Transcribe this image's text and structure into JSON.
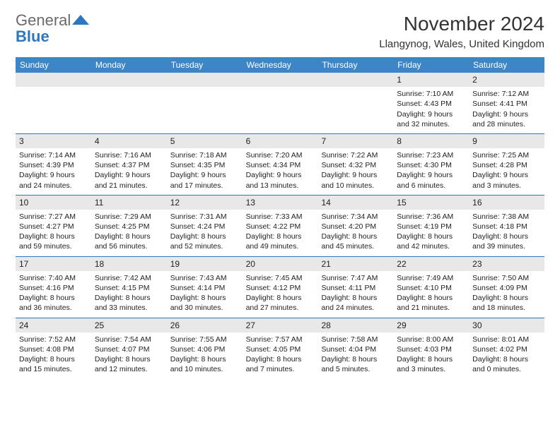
{
  "logo": {
    "line1": "General",
    "line2": "Blue"
  },
  "monthTitle": "November 2024",
  "location": "Llangynog, Wales, United Kingdom",
  "colors": {
    "headerBlue": "#3c86c7",
    "borderBlue": "#2d77c2",
    "grayBand": "#e8e8e8",
    "logoGray": "#6a6a6a"
  },
  "dayNames": [
    "Sunday",
    "Monday",
    "Tuesday",
    "Wednesday",
    "Thursday",
    "Friday",
    "Saturday"
  ],
  "weeks": [
    [
      null,
      null,
      null,
      null,
      null,
      {
        "d": "1",
        "sr": "7:10 AM",
        "ss": "4:43 PM",
        "dl": "9 hours and 32 minutes."
      },
      {
        "d": "2",
        "sr": "7:12 AM",
        "ss": "4:41 PM",
        "dl": "9 hours and 28 minutes."
      }
    ],
    [
      {
        "d": "3",
        "sr": "7:14 AM",
        "ss": "4:39 PM",
        "dl": "9 hours and 24 minutes."
      },
      {
        "d": "4",
        "sr": "7:16 AM",
        "ss": "4:37 PM",
        "dl": "9 hours and 21 minutes."
      },
      {
        "d": "5",
        "sr": "7:18 AM",
        "ss": "4:35 PM",
        "dl": "9 hours and 17 minutes."
      },
      {
        "d": "6",
        "sr": "7:20 AM",
        "ss": "4:34 PM",
        "dl": "9 hours and 13 minutes."
      },
      {
        "d": "7",
        "sr": "7:22 AM",
        "ss": "4:32 PM",
        "dl": "9 hours and 10 minutes."
      },
      {
        "d": "8",
        "sr": "7:23 AM",
        "ss": "4:30 PM",
        "dl": "9 hours and 6 minutes."
      },
      {
        "d": "9",
        "sr": "7:25 AM",
        "ss": "4:28 PM",
        "dl": "9 hours and 3 minutes."
      }
    ],
    [
      {
        "d": "10",
        "sr": "7:27 AM",
        "ss": "4:27 PM",
        "dl": "8 hours and 59 minutes."
      },
      {
        "d": "11",
        "sr": "7:29 AM",
        "ss": "4:25 PM",
        "dl": "8 hours and 56 minutes."
      },
      {
        "d": "12",
        "sr": "7:31 AM",
        "ss": "4:24 PM",
        "dl": "8 hours and 52 minutes."
      },
      {
        "d": "13",
        "sr": "7:33 AM",
        "ss": "4:22 PM",
        "dl": "8 hours and 49 minutes."
      },
      {
        "d": "14",
        "sr": "7:34 AM",
        "ss": "4:20 PM",
        "dl": "8 hours and 45 minutes."
      },
      {
        "d": "15",
        "sr": "7:36 AM",
        "ss": "4:19 PM",
        "dl": "8 hours and 42 minutes."
      },
      {
        "d": "16",
        "sr": "7:38 AM",
        "ss": "4:18 PM",
        "dl": "8 hours and 39 minutes."
      }
    ],
    [
      {
        "d": "17",
        "sr": "7:40 AM",
        "ss": "4:16 PM",
        "dl": "8 hours and 36 minutes."
      },
      {
        "d": "18",
        "sr": "7:42 AM",
        "ss": "4:15 PM",
        "dl": "8 hours and 33 minutes."
      },
      {
        "d": "19",
        "sr": "7:43 AM",
        "ss": "4:14 PM",
        "dl": "8 hours and 30 minutes."
      },
      {
        "d": "20",
        "sr": "7:45 AM",
        "ss": "4:12 PM",
        "dl": "8 hours and 27 minutes."
      },
      {
        "d": "21",
        "sr": "7:47 AM",
        "ss": "4:11 PM",
        "dl": "8 hours and 24 minutes."
      },
      {
        "d": "22",
        "sr": "7:49 AM",
        "ss": "4:10 PM",
        "dl": "8 hours and 21 minutes."
      },
      {
        "d": "23",
        "sr": "7:50 AM",
        "ss": "4:09 PM",
        "dl": "8 hours and 18 minutes."
      }
    ],
    [
      {
        "d": "24",
        "sr": "7:52 AM",
        "ss": "4:08 PM",
        "dl": "8 hours and 15 minutes."
      },
      {
        "d": "25",
        "sr": "7:54 AM",
        "ss": "4:07 PM",
        "dl": "8 hours and 12 minutes."
      },
      {
        "d": "26",
        "sr": "7:55 AM",
        "ss": "4:06 PM",
        "dl": "8 hours and 10 minutes."
      },
      {
        "d": "27",
        "sr": "7:57 AM",
        "ss": "4:05 PM",
        "dl": "8 hours and 7 minutes."
      },
      {
        "d": "28",
        "sr": "7:58 AM",
        "ss": "4:04 PM",
        "dl": "8 hours and 5 minutes."
      },
      {
        "d": "29",
        "sr": "8:00 AM",
        "ss": "4:03 PM",
        "dl": "8 hours and 3 minutes."
      },
      {
        "d": "30",
        "sr": "8:01 AM",
        "ss": "4:02 PM",
        "dl": "8 hours and 0 minutes."
      }
    ]
  ],
  "labels": {
    "sunrise": "Sunrise: ",
    "sunset": "Sunset: ",
    "daylight": "Daylight: "
  }
}
